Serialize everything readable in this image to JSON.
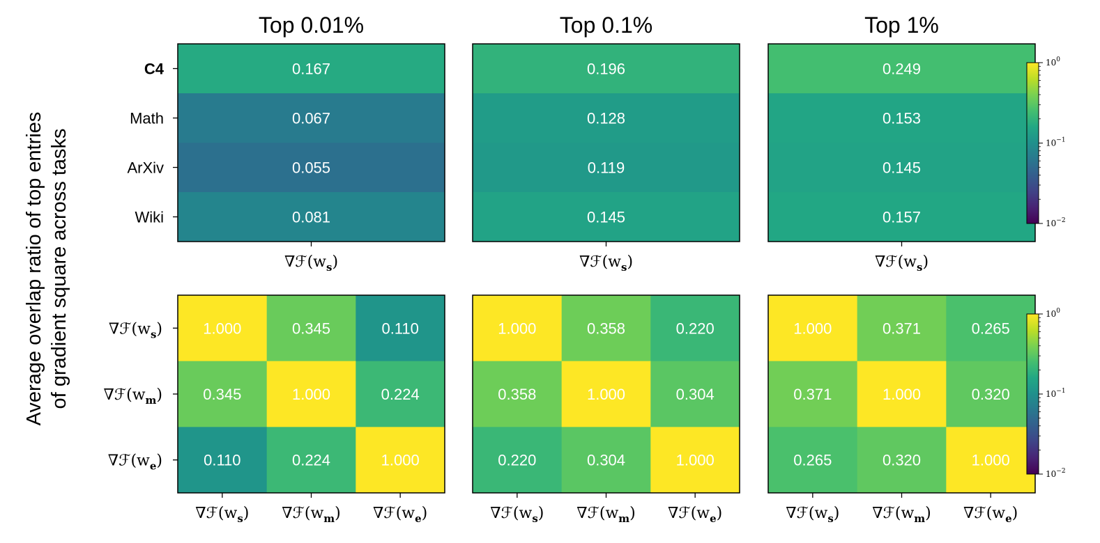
{
  "chart_data": {
    "type": "heatmap",
    "ylabel_lines": [
      "Average overlap ratio of top entries",
      "of gradient square across tasks"
    ],
    "column_titles": [
      "Top 0.01%",
      "Top 0.1%",
      "Top 1%"
    ],
    "color_scale": {
      "type": "log",
      "range": [
        0.01,
        1
      ],
      "colormap": "viridis",
      "tick_labels": [
        {
          "base": "10",
          "exp": "0"
        },
        {
          "base": "10",
          "exp": "−1"
        },
        {
          "base": "10",
          "exp": "−2"
        }
      ]
    },
    "value_color": "#ffffff",
    "top_row": {
      "row_labels": [
        "C4",
        "Math",
        "ArXiv",
        "Wiki"
      ],
      "bold_row_label": "C4",
      "col_labels": [
        {
          "base": "∇ℱ(w",
          "sub": "s",
          "close": ")"
        }
      ],
      "panels": [
        {
          "title": "Top 0.01%",
          "values": [
            [
              0.167
            ],
            [
              0.067
            ],
            [
              0.055
            ],
            [
              0.081
            ]
          ]
        },
        {
          "title": "Top 0.1%",
          "values": [
            [
              0.196
            ],
            [
              0.128
            ],
            [
              0.119
            ],
            [
              0.145
            ]
          ]
        },
        {
          "title": "Top 1%",
          "values": [
            [
              0.249
            ],
            [
              0.153
            ],
            [
              0.145
            ],
            [
              0.157
            ]
          ]
        }
      ]
    },
    "bottom_row": {
      "labels": [
        {
          "base": "∇ℱ(w",
          "sub": "s",
          "close": ")"
        },
        {
          "base": "∇ℱ(w",
          "sub": "m",
          "close": ")"
        },
        {
          "base": "∇ℱ(w",
          "sub": "e",
          "close": ")"
        }
      ],
      "panels": [
        {
          "title": "Top 0.01%",
          "values": [
            [
              1.0,
              0.345,
              0.11
            ],
            [
              0.345,
              1.0,
              0.224
            ],
            [
              0.11,
              0.224,
              1.0
            ]
          ]
        },
        {
          "title": "Top 0.1%",
          "values": [
            [
              1.0,
              0.358,
              0.22
            ],
            [
              0.358,
              1.0,
              0.304
            ],
            [
              0.22,
              0.304,
              1.0
            ]
          ]
        },
        {
          "title": "Top 1%",
          "values": [
            [
              1.0,
              0.371,
              0.265
            ],
            [
              0.371,
              1.0,
              0.32
            ],
            [
              0.265,
              0.32,
              1.0
            ]
          ]
        }
      ]
    }
  }
}
